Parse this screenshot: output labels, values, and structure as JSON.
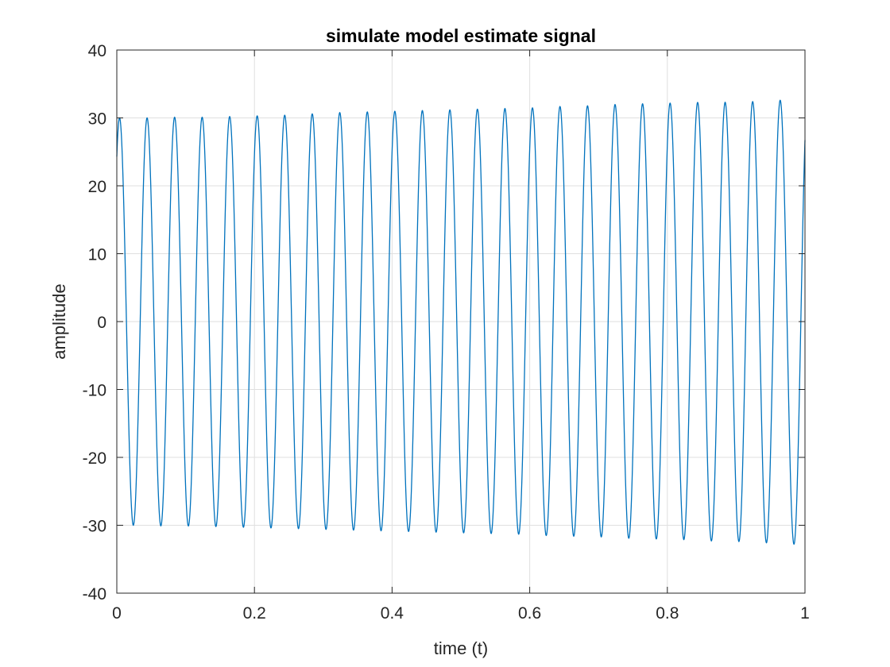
{
  "chart_data": {
    "type": "line",
    "title": "simulate model estimate signal",
    "xlabel": "time (t)",
    "ylabel": "amplitude",
    "xlim": [
      0,
      1
    ],
    "ylim": [
      -40,
      40
    ],
    "xticks": [
      0,
      0.2,
      0.4,
      0.6,
      0.8,
      1
    ],
    "xtick_labels": [
      "0",
      "0.2",
      "0.4",
      "0.6",
      "0.8",
      "1"
    ],
    "yticks": [
      -40,
      -30,
      -20,
      -10,
      0,
      10,
      20,
      30,
      40
    ],
    "ytick_labels": [
      "-40",
      "-30",
      "-20",
      "-10",
      "0",
      "10",
      "20",
      "30",
      "40"
    ],
    "grid": true,
    "line_color": "#0072BD",
    "series": [
      {
        "description_note": "",
        "frequency_hz": 25,
        "amplitude_start": 30.0,
        "amplitude_end": 33.0,
        "value_at_t0": 24.3,
        "peaks": [
          [
            0.006,
            30.0
          ],
          [
            0.046,
            30.0
          ],
          [
            0.086,
            30.1
          ],
          [
            0.126,
            30.1
          ],
          [
            0.166,
            30.2
          ],
          [
            0.206,
            30.3
          ],
          [
            0.246,
            30.4
          ],
          [
            0.286,
            30.6
          ],
          [
            0.326,
            30.8
          ],
          [
            0.366,
            30.9
          ],
          [
            0.406,
            31.0
          ],
          [
            0.446,
            31.1
          ],
          [
            0.486,
            31.2
          ],
          [
            0.526,
            31.3
          ],
          [
            0.566,
            31.4
          ],
          [
            0.606,
            31.5
          ],
          [
            0.646,
            31.7
          ],
          [
            0.686,
            31.8
          ],
          [
            0.726,
            32.0
          ],
          [
            0.766,
            32.1
          ],
          [
            0.806,
            32.2
          ],
          [
            0.846,
            32.3
          ],
          [
            0.886,
            32.3
          ],
          [
            0.926,
            32.4
          ],
          [
            0.966,
            32.6
          ]
        ],
        "troughs": [
          [
            0.026,
            -30.0
          ],
          [
            0.066,
            -30.1
          ],
          [
            0.106,
            -30.1
          ],
          [
            0.146,
            -30.2
          ],
          [
            0.186,
            -30.3
          ],
          [
            0.226,
            -30.4
          ],
          [
            0.266,
            -30.5
          ],
          [
            0.306,
            -30.6
          ],
          [
            0.346,
            -30.7
          ],
          [
            0.386,
            -30.8
          ],
          [
            0.426,
            -30.9
          ],
          [
            0.466,
            -31.0
          ],
          [
            0.506,
            -31.1
          ],
          [
            0.546,
            -31.2
          ],
          [
            0.586,
            -31.3
          ],
          [
            0.626,
            -31.5
          ],
          [
            0.666,
            -31.6
          ],
          [
            0.706,
            -31.7
          ],
          [
            0.746,
            -31.9
          ],
          [
            0.786,
            -32.0
          ],
          [
            0.826,
            -32.1
          ],
          [
            0.866,
            -32.3
          ],
          [
            0.906,
            -32.4
          ],
          [
            0.946,
            -32.6
          ],
          [
            0.986,
            -32.8
          ]
        ],
        "value_at_t1": 33.0
      }
    ]
  }
}
